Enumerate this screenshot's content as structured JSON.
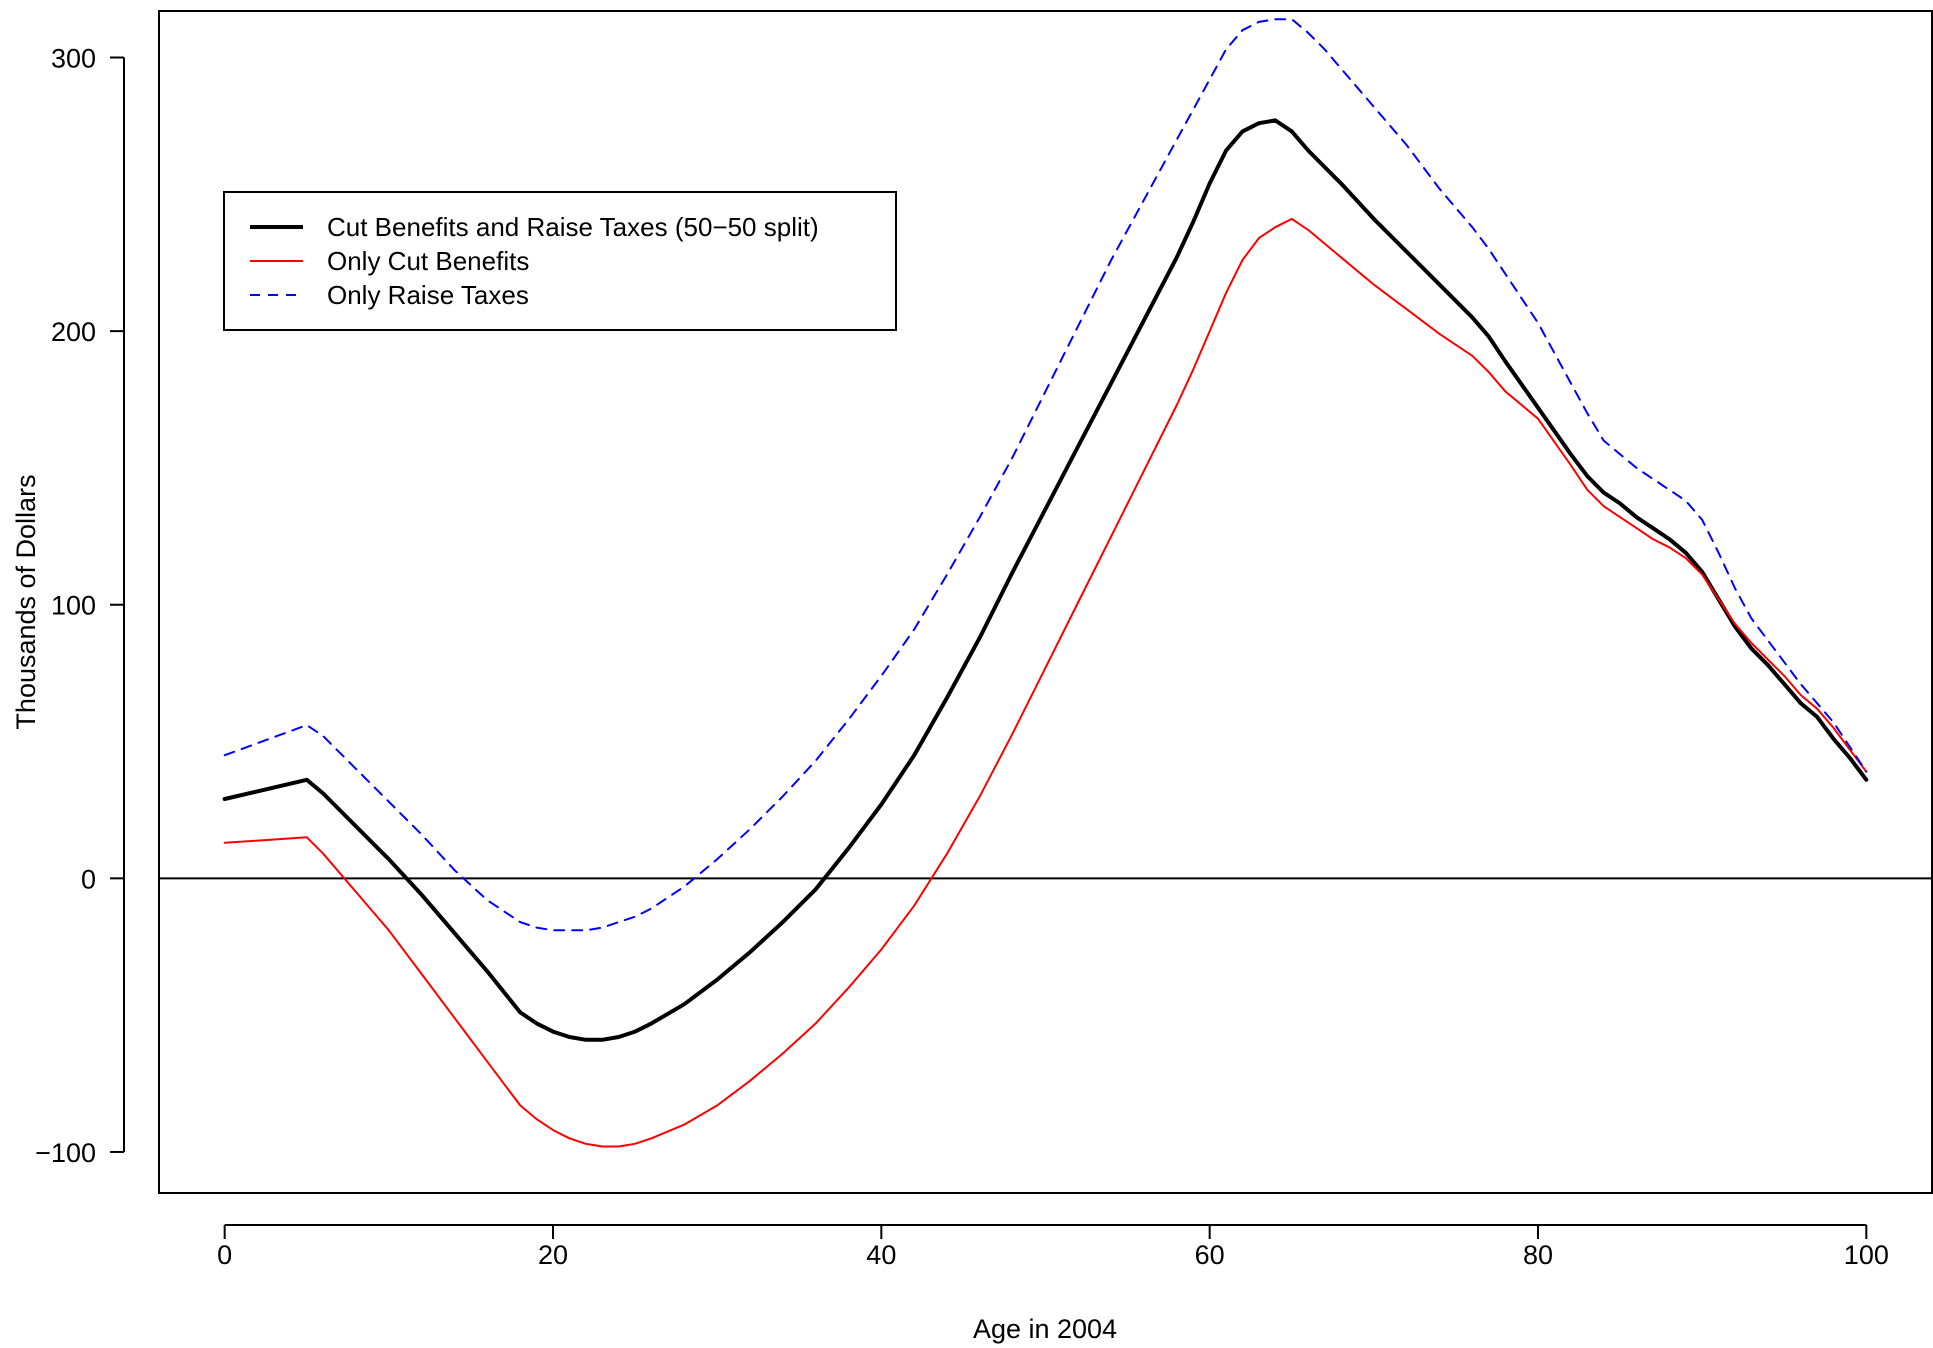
{
  "chart_data": {
    "type": "line",
    "title": "",
    "xlabel": "Age in 2004",
    "ylabel": "Thousands of Dollars",
    "xlim": [
      -4,
      104
    ],
    "ylim": [
      -115,
      317
    ],
    "xticks": [
      0,
      20,
      40,
      60,
      80,
      100
    ],
    "yticks": [
      -100,
      0,
      100,
      200,
      300
    ],
    "xtick_labels": [
      "0",
      "20",
      "40",
      "60",
      "80",
      "100"
    ],
    "ytick_labels": [
      "−100",
      "0",
      "100",
      "200",
      "300"
    ],
    "reference_line_y": 0,
    "grid": false,
    "legend_position": "top-left",
    "series": [
      {
        "name": "Cut Benefits and Raise Taxes (50−50 split)",
        "color": "#000000",
        "style": "solid-thick",
        "x": [
          0,
          5,
          6,
          8,
          10,
          12,
          14,
          16,
          18,
          19,
          20,
          21,
          22,
          23,
          24,
          25,
          26,
          28,
          30,
          32,
          34,
          36,
          38,
          40,
          42,
          44,
          46,
          48,
          50,
          52,
          54,
          56,
          58,
          59,
          60,
          61,
          62,
          63,
          64,
          65,
          66,
          67,
          68,
          70,
          72,
          74,
          76,
          77,
          78,
          80,
          82,
          83,
          84,
          85,
          86,
          87,
          88,
          89,
          90,
          91,
          92,
          93,
          94,
          95,
          96,
          97,
          98,
          99,
          100
        ],
        "y": [
          29,
          36,
          31,
          19,
          7,
          -6,
          -20,
          -34,
          -49,
          -53,
          -56,
          -58,
          -59,
          -59,
          -58,
          -56,
          -53,
          -46,
          -37,
          -27,
          -16,
          -4,
          11,
          27,
          45,
          66,
          88,
          112,
          135,
          158,
          181,
          204,
          227,
          240,
          254,
          266,
          273,
          276,
          277,
          273,
          266,
          260,
          254,
          241,
          229,
          217,
          205,
          198,
          189,
          172,
          155,
          147,
          141,
          137,
          132,
          128,
          124,
          119,
          112,
          102,
          92,
          84,
          78,
          71,
          64,
          59,
          51,
          44,
          36
        ]
      },
      {
        "name": "Only Cut Benefits",
        "color": "#ff0000",
        "style": "solid-thin",
        "x": [
          0,
          5,
          6,
          8,
          10,
          12,
          14,
          16,
          18,
          19,
          20,
          21,
          22,
          23,
          24,
          25,
          26,
          28,
          30,
          32,
          34,
          36,
          38,
          40,
          42,
          44,
          46,
          48,
          50,
          52,
          54,
          56,
          58,
          59,
          60,
          61,
          62,
          63,
          64,
          65,
          66,
          67,
          68,
          70,
          72,
          74,
          76,
          77,
          78,
          80,
          82,
          83,
          84,
          85,
          86,
          87,
          88,
          89,
          90,
          91,
          92,
          93,
          94,
          95,
          96,
          97,
          98,
          99,
          100
        ],
        "y": [
          13,
          15,
          9,
          -5,
          -19,
          -35,
          -51,
          -67,
          -83,
          -88,
          -92,
          -95,
          -97,
          -98,
          -98,
          -97,
          -95,
          -90,
          -83,
          -74,
          -64,
          -53,
          -40,
          -26,
          -10,
          9,
          30,
          53,
          77,
          101,
          125,
          149,
          173,
          186,
          200,
          214,
          226,
          234,
          238,
          241,
          237,
          232,
          227,
          217,
          208,
          199,
          191,
          185,
          178,
          168,
          151,
          142,
          136,
          132,
          128,
          124,
          121,
          117,
          111,
          102,
          93,
          86,
          80,
          74,
          67,
          62,
          55,
          47,
          39
        ]
      },
      {
        "name": "Only Raise Taxes",
        "color": "#0000ff",
        "style": "dashed",
        "x": [
          0,
          5,
          6,
          8,
          10,
          12,
          14,
          16,
          18,
          19,
          20,
          21,
          22,
          23,
          24,
          25,
          26,
          28,
          30,
          32,
          34,
          36,
          38,
          40,
          42,
          44,
          46,
          48,
          50,
          52,
          54,
          56,
          58,
          59,
          60,
          61,
          62,
          63,
          64,
          65,
          66,
          67,
          68,
          70,
          72,
          74,
          76,
          77,
          78,
          80,
          82,
          83,
          84,
          85,
          86,
          87,
          88,
          89,
          90,
          91,
          92,
          93,
          94,
          95,
          96,
          97,
          98,
          99,
          100
        ],
        "y": [
          45,
          56,
          52,
          40,
          28,
          16,
          3,
          -8,
          -16,
          -18,
          -19,
          -19,
          -19,
          -18,
          -16,
          -14,
          -11,
          -3,
          7,
          18,
          30,
          43,
          58,
          74,
          91,
          111,
          132,
          154,
          178,
          202,
          226,
          248,
          270,
          281,
          292,
          303,
          310,
          313,
          314,
          314,
          309,
          303,
          296,
          282,
          268,
          252,
          238,
          230,
          221,
          203,
          181,
          170,
          160,
          155,
          150,
          146,
          142,
          138,
          131,
          119,
          106,
          95,
          87,
          79,
          71,
          64,
          57,
          48,
          39
        ]
      }
    ]
  }
}
